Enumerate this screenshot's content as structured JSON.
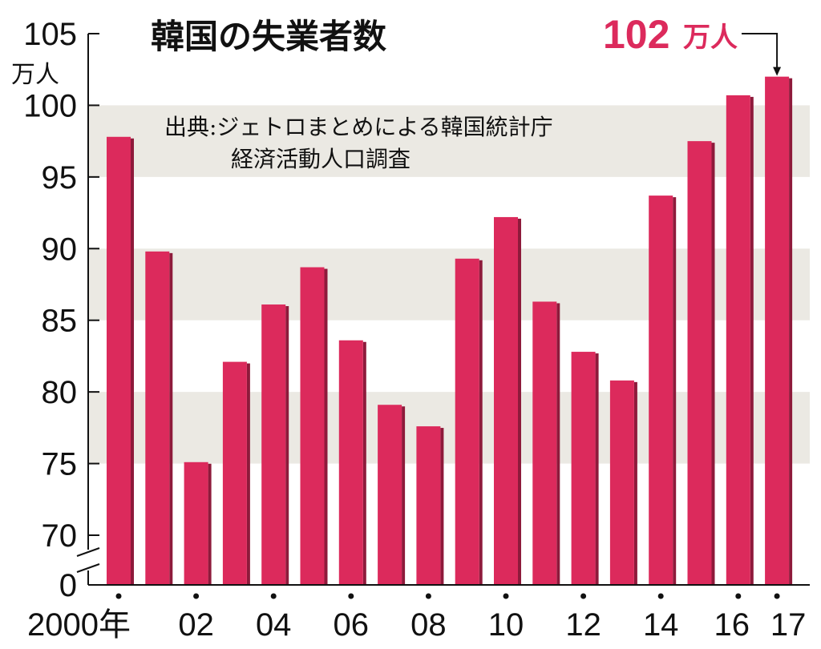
{
  "chart_data": {
    "type": "bar",
    "title": "韓国の失業者数",
    "source_line1": "出典:ジェトロまとめによる韓国統計庁",
    "source_line2": "経済活動人口調査",
    "y_unit": "万人",
    "ylim": [
      70,
      105
    ],
    "y_ticks": [
      "105",
      "100",
      "95",
      "90",
      "85",
      "80",
      "75",
      "70",
      "0"
    ],
    "axis_break": true,
    "grid": "alternating horizontal bands",
    "categories": [
      "2000",
      "2001",
      "2002",
      "2003",
      "2004",
      "2005",
      "2006",
      "2007",
      "2008",
      "2009",
      "2010",
      "2011",
      "2012",
      "2013",
      "2014",
      "2015",
      "2016",
      "2017"
    ],
    "x_tick_labels": [
      "2000年",
      "02",
      "04",
      "06",
      "08",
      "10",
      "12",
      "14",
      "16",
      "17"
    ],
    "values": [
      97.8,
      89.8,
      75.1,
      82.1,
      86.1,
      88.7,
      83.6,
      79.1,
      77.6,
      89.3,
      92.2,
      86.3,
      82.8,
      80.8,
      93.7,
      97.5,
      100.7,
      102.0
    ],
    "callout": {
      "value": "102",
      "unit": "万人"
    },
    "colors": {
      "bar": "#dc2a5c",
      "bar_side": "#8e1a3b",
      "band": "#ebe9e3",
      "callout": "#dc2a5c",
      "axis": "#111111"
    }
  }
}
